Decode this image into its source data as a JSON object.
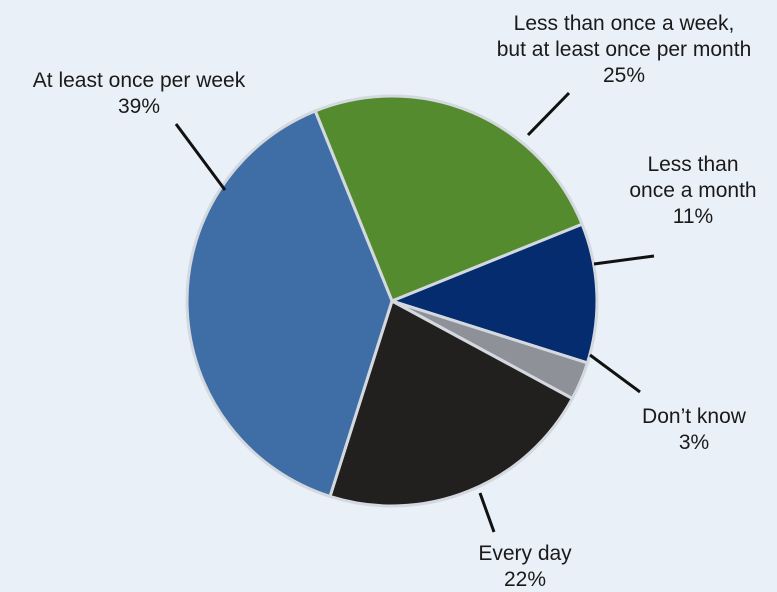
{
  "chart_data": {
    "type": "pie",
    "title": "",
    "slices": [
      {
        "name": "Less than once a week, but at least once per month",
        "value": 25,
        "color": "#548b2e",
        "label_lines": [
          "Less than once a week,",
          "but at least once per month",
          "25%"
        ]
      },
      {
        "name": "Less than once a month",
        "value": 11,
        "color": "#052c6e",
        "label_lines": [
          "Less than",
          "once a month",
          "11%"
        ]
      },
      {
        "name": "Don’t know",
        "value": 3,
        "color": "#8e9298",
        "label_lines": [
          "Don’t know",
          "3%"
        ]
      },
      {
        "name": "Every day",
        "value": 22,
        "color": "#221f1f",
        "label_lines": [
          "Every day",
          "22%"
        ]
      },
      {
        "name": "At least once per week",
        "value": 39,
        "color": "#3f6ea6",
        "label_lines": [
          "At least once per week",
          "39%"
        ]
      }
    ]
  }
}
